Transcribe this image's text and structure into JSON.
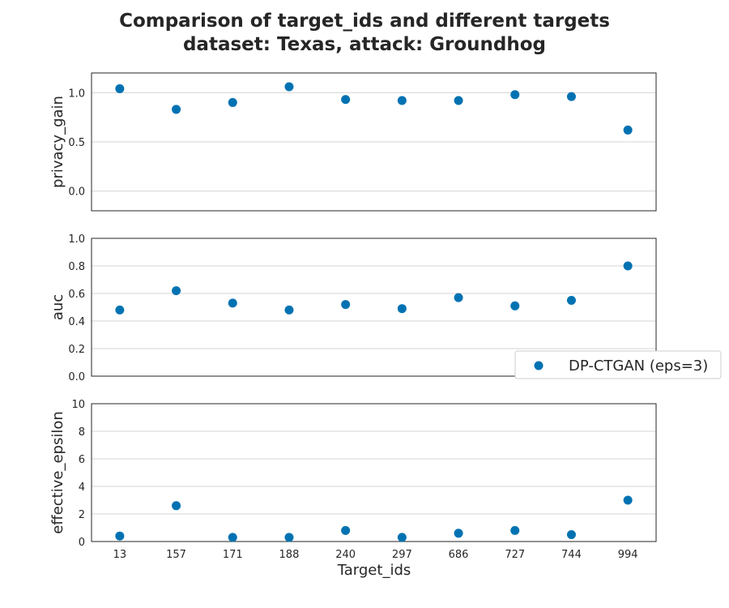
{
  "title_line1": "Comparison of target_ids and different targets",
  "title_line2": "dataset: Texas, attack: Groundhog",
  "xlabel": "Target_ids",
  "legend": {
    "label": "DP-CTGAN (eps=3)",
    "placement": "right"
  },
  "marker_color": "#0072b2",
  "chart_data": [
    {
      "type": "scatter",
      "ylabel": "privacy_gain",
      "categories": [
        "13",
        "157",
        "171",
        "188",
        "240",
        "297",
        "686",
        "727",
        "744",
        "994"
      ],
      "ylim": [
        -0.2,
        1.2
      ],
      "yticks": [
        "0.0",
        "0.5",
        "1.0"
      ],
      "grid": true,
      "show_xticks": false,
      "series": [
        {
          "name": "DP-CTGAN (eps=3)",
          "values": [
            1.04,
            0.83,
            0.9,
            1.06,
            0.93,
            0.92,
            0.92,
            0.98,
            0.96,
            0.62
          ]
        }
      ]
    },
    {
      "type": "scatter",
      "ylabel": "auc",
      "categories": [
        "13",
        "157",
        "171",
        "188",
        "240",
        "297",
        "686",
        "727",
        "744",
        "994"
      ],
      "ylim": [
        0.0,
        1.0
      ],
      "yticks": [
        "0.0",
        "0.2",
        "0.4",
        "0.6",
        "0.8",
        "1.0"
      ],
      "grid": true,
      "show_xticks": false,
      "series": [
        {
          "name": "DP-CTGAN (eps=3)",
          "values": [
            0.48,
            0.62,
            0.53,
            0.48,
            0.52,
            0.49,
            0.57,
            0.51,
            0.55,
            0.8
          ]
        }
      ]
    },
    {
      "type": "scatter",
      "ylabel": "effective_epsilon",
      "categories": [
        "13",
        "157",
        "171",
        "188",
        "240",
        "297",
        "686",
        "727",
        "744",
        "994"
      ],
      "ylim": [
        0,
        10
      ],
      "yticks": [
        "0",
        "2",
        "4",
        "6",
        "8",
        "10"
      ],
      "grid": true,
      "show_xticks": true,
      "series": [
        {
          "name": "DP-CTGAN (eps=3)",
          "values": [
            0.4,
            2.6,
            0.3,
            0.3,
            0.8,
            0.3,
            0.6,
            0.8,
            0.5,
            3.0
          ]
        }
      ]
    }
  ]
}
